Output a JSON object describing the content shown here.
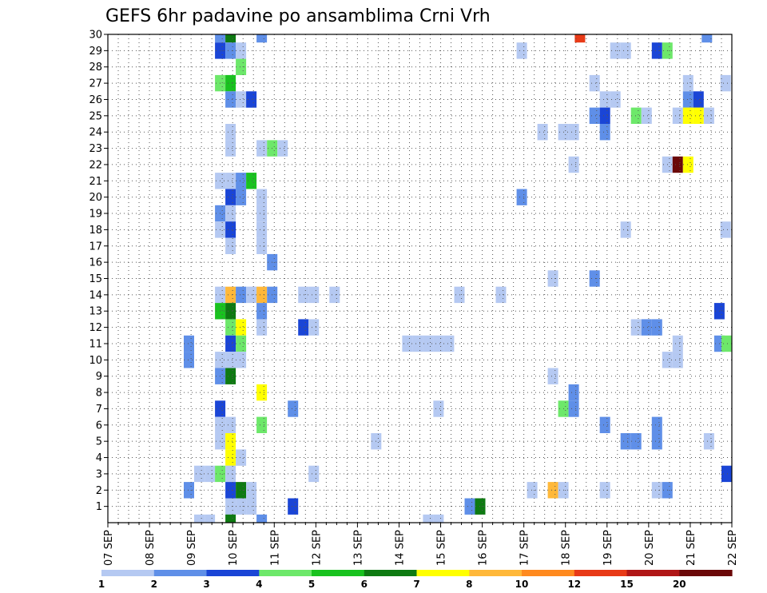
{
  "chart_data": {
    "type": "heatmap",
    "title": "GEFS 6hr padavine po ansamblima Crni Vrh",
    "x_tick_labels": [
      "07 SEP",
      "08 SEP",
      "09 SEP",
      "10 SEP",
      "11 SEP",
      "12 SEP",
      "13 SEP",
      "14 SEP",
      "15 SEP",
      "16 SEP",
      "17 SEP",
      "18 SEP",
      "19 SEP",
      "20 SEP",
      "21 SEP",
      "22 SEP"
    ],
    "y_tick_labels": [
      "1",
      "2",
      "3",
      "4",
      "5",
      "6",
      "7",
      "8",
      "9",
      "10",
      "11",
      "12",
      "13",
      "14",
      "15",
      "16",
      "17",
      "18",
      "19",
      "20",
      "21",
      "22",
      "23",
      "24",
      "25",
      "26",
      "27",
      "28",
      "29",
      "30"
    ],
    "xlim_days": [
      7,
      22
    ],
    "ylim": [
      0,
      30
    ],
    "grid": true,
    "colorbar": {
      "labels": [
        "1",
        "2",
        "3",
        "4",
        "5",
        "6",
        "7",
        "8",
        "10",
        "12",
        "15",
        "20"
      ],
      "colors": [
        "#b5c9f2",
        "#5f8fe8",
        "#1a45d6",
        "#6de86a",
        "#19c21f",
        "#0e7a12",
        "#ffff00",
        "#ffb83a",
        "#ff8a1f",
        "#e83a17",
        "#b01616",
        "#6b0808"
      ]
    },
    "cells": [
      {
        "member": 30,
        "day": 9.7,
        "bin": 2
      },
      {
        "member": 30,
        "day": 9.95,
        "bin": 6
      },
      {
        "member": 30,
        "day": 10.7,
        "bin": 2
      },
      {
        "member": 30,
        "day": 18.35,
        "bin": 10
      },
      {
        "member": 30,
        "day": 21.4,
        "bin": 2
      },
      {
        "member": 29,
        "day": 9.7,
        "bin": 3
      },
      {
        "member": 29,
        "day": 9.95,
        "bin": 2
      },
      {
        "member": 29,
        "day": 10.2,
        "bin": 1
      },
      {
        "member": 29,
        "day": 16.95,
        "bin": 1
      },
      {
        "member": 29,
        "day": 19.2,
        "bin": 1
      },
      {
        "member": 29,
        "day": 19.45,
        "bin": 1
      },
      {
        "member": 29,
        "day": 20.2,
        "bin": 3
      },
      {
        "member": 29,
        "day": 20.45,
        "bin": 4
      },
      {
        "member": 28,
        "day": 10.2,
        "bin": 4
      },
      {
        "member": 27,
        "day": 9.7,
        "bin": 4
      },
      {
        "member": 27,
        "day": 9.95,
        "bin": 5
      },
      {
        "member": 27,
        "day": 18.7,
        "bin": 1
      },
      {
        "member": 27,
        "day": 20.95,
        "bin": 1
      },
      {
        "member": 27,
        "day": 21.85,
        "bin": 1
      },
      {
        "member": 26,
        "day": 9.95,
        "bin": 2
      },
      {
        "member": 26,
        "day": 10.2,
        "bin": 1
      },
      {
        "member": 26,
        "day": 10.45,
        "bin": 3
      },
      {
        "member": 26,
        "day": 18.95,
        "bin": 1
      },
      {
        "member": 26,
        "day": 19.2,
        "bin": 1
      },
      {
        "member": 26,
        "day": 20.95,
        "bin": 2
      },
      {
        "member": 26,
        "day": 21.2,
        "bin": 3
      },
      {
        "member": 25,
        "day": 18.7,
        "bin": 2
      },
      {
        "member": 25,
        "day": 18.95,
        "bin": 3
      },
      {
        "member": 25,
        "day": 19.7,
        "bin": 4
      },
      {
        "member": 25,
        "day": 19.95,
        "bin": 1
      },
      {
        "member": 25,
        "day": 20.7,
        "bin": 1
      },
      {
        "member": 25,
        "day": 20.95,
        "bin": 7
      },
      {
        "member": 25,
        "day": 21.2,
        "bin": 7
      },
      {
        "member": 25,
        "day": 21.45,
        "bin": 1
      },
      {
        "member": 24,
        "day": 9.95,
        "bin": 1
      },
      {
        "member": 24,
        "day": 17.45,
        "bin": 1
      },
      {
        "member": 24,
        "day": 17.95,
        "bin": 1
      },
      {
        "member": 24,
        "day": 18.2,
        "bin": 1
      },
      {
        "member": 24,
        "day": 18.95,
        "bin": 2
      },
      {
        "member": 23,
        "day": 9.95,
        "bin": 1
      },
      {
        "member": 23,
        "day": 10.7,
        "bin": 1
      },
      {
        "member": 23,
        "day": 10.95,
        "bin": 4
      },
      {
        "member": 23,
        "day": 11.2,
        "bin": 1
      },
      {
        "member": 22,
        "day": 18.2,
        "bin": 1
      },
      {
        "member": 22,
        "day": 20.45,
        "bin": 1
      },
      {
        "member": 22,
        "day": 20.7,
        "bin": 12
      },
      {
        "member": 22,
        "day": 20.95,
        "bin": 7
      },
      {
        "member": 21,
        "day": 9.7,
        "bin": 1
      },
      {
        "member": 21,
        "day": 9.95,
        "bin": 1
      },
      {
        "member": 21,
        "day": 10.2,
        "bin": 2
      },
      {
        "member": 21,
        "day": 10.45,
        "bin": 5
      },
      {
        "member": 20,
        "day": 9.95,
        "bin": 3
      },
      {
        "member": 20,
        "day": 10.2,
        "bin": 2
      },
      {
        "member": 20,
        "day": 10.7,
        "bin": 1
      },
      {
        "member": 20,
        "day": 16.95,
        "bin": 2
      },
      {
        "member": 19,
        "day": 9.7,
        "bin": 2
      },
      {
        "member": 19,
        "day": 9.95,
        "bin": 1
      },
      {
        "member": 19,
        "day": 10.7,
        "bin": 1
      },
      {
        "member": 18,
        "day": 9.7,
        "bin": 1
      },
      {
        "member": 18,
        "day": 9.95,
        "bin": 3
      },
      {
        "member": 18,
        "day": 10.7,
        "bin": 1
      },
      {
        "member": 18,
        "day": 19.45,
        "bin": 1
      },
      {
        "member": 18,
        "day": 21.85,
        "bin": 1
      },
      {
        "member": 17,
        "day": 9.95,
        "bin": 1
      },
      {
        "member": 17,
        "day": 10.7,
        "bin": 1
      },
      {
        "member": 16,
        "day": 10.95,
        "bin": 2
      },
      {
        "member": 15,
        "day": 17.7,
        "bin": 1
      },
      {
        "member": 15,
        "day": 18.7,
        "bin": 2
      },
      {
        "member": 14,
        "day": 9.7,
        "bin": 1
      },
      {
        "member": 14,
        "day": 9.95,
        "bin": 8
      },
      {
        "member": 14,
        "day": 10.2,
        "bin": 2
      },
      {
        "member": 14,
        "day": 10.45,
        "bin": 1
      },
      {
        "member": 14,
        "day": 10.7,
        "bin": 8
      },
      {
        "member": 14,
        "day": 10.95,
        "bin": 2
      },
      {
        "member": 14,
        "day": 11.7,
        "bin": 1
      },
      {
        "member": 14,
        "day": 11.95,
        "bin": 1
      },
      {
        "member": 14,
        "day": 12.45,
        "bin": 1
      },
      {
        "member": 14,
        "day": 15.45,
        "bin": 1
      },
      {
        "member": 14,
        "day": 16.45,
        "bin": 1
      },
      {
        "member": 13,
        "day": 9.7,
        "bin": 5
      },
      {
        "member": 13,
        "day": 9.95,
        "bin": 6
      },
      {
        "member": 13,
        "day": 10.7,
        "bin": 2
      },
      {
        "member": 13,
        "day": 21.7,
        "bin": 3
      },
      {
        "member": 12,
        "day": 9.95,
        "bin": 4
      },
      {
        "member": 12,
        "day": 10.2,
        "bin": 7
      },
      {
        "member": 12,
        "day": 10.7,
        "bin": 1
      },
      {
        "member": 12,
        "day": 11.7,
        "bin": 3
      },
      {
        "member": 12,
        "day": 11.95,
        "bin": 1
      },
      {
        "member": 12,
        "day": 19.7,
        "bin": 1
      },
      {
        "member": 12,
        "day": 19.95,
        "bin": 2
      },
      {
        "member": 12,
        "day": 20.2,
        "bin": 2
      },
      {
        "member": 11,
        "day": 8.95,
        "bin": 2
      },
      {
        "member": 11,
        "day": 9.95,
        "bin": 3
      },
      {
        "member": 11,
        "day": 10.2,
        "bin": 4
      },
      {
        "member": 11,
        "day": 14.2,
        "bin": 1
      },
      {
        "member": 11,
        "day": 14.45,
        "bin": 1
      },
      {
        "member": 11,
        "day": 14.7,
        "bin": 1
      },
      {
        "member": 11,
        "day": 14.95,
        "bin": 1
      },
      {
        "member": 11,
        "day": 15.2,
        "bin": 1
      },
      {
        "member": 11,
        "day": 20.7,
        "bin": 1
      },
      {
        "member": 11,
        "day": 21.7,
        "bin": 2
      },
      {
        "member": 11,
        "day": 21.9,
        "bin": 4
      },
      {
        "member": 10,
        "day": 8.95,
        "bin": 2
      },
      {
        "member": 10,
        "day": 9.7,
        "bin": 1
      },
      {
        "member": 10,
        "day": 9.95,
        "bin": 1
      },
      {
        "member": 10,
        "day": 10.2,
        "bin": 1
      },
      {
        "member": 10,
        "day": 20.45,
        "bin": 1
      },
      {
        "member": 10,
        "day": 20.7,
        "bin": 1
      },
      {
        "member": 9,
        "day": 9.7,
        "bin": 2
      },
      {
        "member": 9,
        "day": 9.95,
        "bin": 6
      },
      {
        "member": 9,
        "day": 17.7,
        "bin": 1
      },
      {
        "member": 8,
        "day": 10.7,
        "bin": 7
      },
      {
        "member": 8,
        "day": 18.2,
        "bin": 2
      },
      {
        "member": 7,
        "day": 9.7,
        "bin": 3
      },
      {
        "member": 7,
        "day": 11.45,
        "bin": 2
      },
      {
        "member": 7,
        "day": 14.95,
        "bin": 1
      },
      {
        "member": 7,
        "day": 17.95,
        "bin": 4
      },
      {
        "member": 7,
        "day": 18.2,
        "bin": 2
      },
      {
        "member": 6,
        "day": 9.7,
        "bin": 1
      },
      {
        "member": 6,
        "day": 9.95,
        "bin": 1
      },
      {
        "member": 6,
        "day": 10.7,
        "bin": 4
      },
      {
        "member": 6,
        "day": 18.95,
        "bin": 2
      },
      {
        "member": 6,
        "day": 20.2,
        "bin": 2
      },
      {
        "member": 5,
        "day": 9.7,
        "bin": 1
      },
      {
        "member": 5,
        "day": 9.95,
        "bin": 7
      },
      {
        "member": 5,
        "day": 13.45,
        "bin": 1
      },
      {
        "member": 5,
        "day": 19.45,
        "bin": 2
      },
      {
        "member": 5,
        "day": 19.7,
        "bin": 2
      },
      {
        "member": 5,
        "day": 20.2,
        "bin": 2
      },
      {
        "member": 5,
        "day": 21.45,
        "bin": 1
      },
      {
        "member": 4,
        "day": 9.95,
        "bin": 7
      },
      {
        "member": 4,
        "day": 10.2,
        "bin": 1
      },
      {
        "member": 3,
        "day": 9.2,
        "bin": 1
      },
      {
        "member": 3,
        "day": 9.45,
        "bin": 1
      },
      {
        "member": 3,
        "day": 9.7,
        "bin": 4
      },
      {
        "member": 3,
        "day": 9.95,
        "bin": 1
      },
      {
        "member": 3,
        "day": 11.95,
        "bin": 1
      },
      {
        "member": 3,
        "day": 21.9,
        "bin": 3
      },
      {
        "member": 2,
        "day": 8.95,
        "bin": 2
      },
      {
        "member": 2,
        "day": 9.95,
        "bin": 3
      },
      {
        "member": 2,
        "day": 10.2,
        "bin": 6
      },
      {
        "member": 2,
        "day": 10.45,
        "bin": 1
      },
      {
        "member": 2,
        "day": 17.2,
        "bin": 1
      },
      {
        "member": 2,
        "day": 17.7,
        "bin": 8
      },
      {
        "member": 2,
        "day": 17.95,
        "bin": 1
      },
      {
        "member": 2,
        "day": 18.95,
        "bin": 1
      },
      {
        "member": 2,
        "day": 20.2,
        "bin": 1
      },
      {
        "member": 2,
        "day": 20.45,
        "bin": 2
      },
      {
        "member": 1,
        "day": 9.95,
        "bin": 1
      },
      {
        "member": 1,
        "day": 10.2,
        "bin": 1
      },
      {
        "member": 1,
        "day": 10.45,
        "bin": 1
      },
      {
        "member": 1,
        "day": 11.45,
        "bin": 3
      },
      {
        "member": 1,
        "day": 15.7,
        "bin": 2
      },
      {
        "member": 1,
        "day": 15.95,
        "bin": 6
      },
      {
        "member": 0,
        "day": 9.2,
        "bin": 1
      },
      {
        "member": 0,
        "day": 9.45,
        "bin": 1
      },
      {
        "member": 0,
        "day": 9.95,
        "bin": 6
      },
      {
        "member": 0,
        "day": 10.7,
        "bin": 2
      },
      {
        "member": 0,
        "day": 14.7,
        "bin": 1
      },
      {
        "member": 0,
        "day": 14.95,
        "bin": 1
      }
    ]
  }
}
